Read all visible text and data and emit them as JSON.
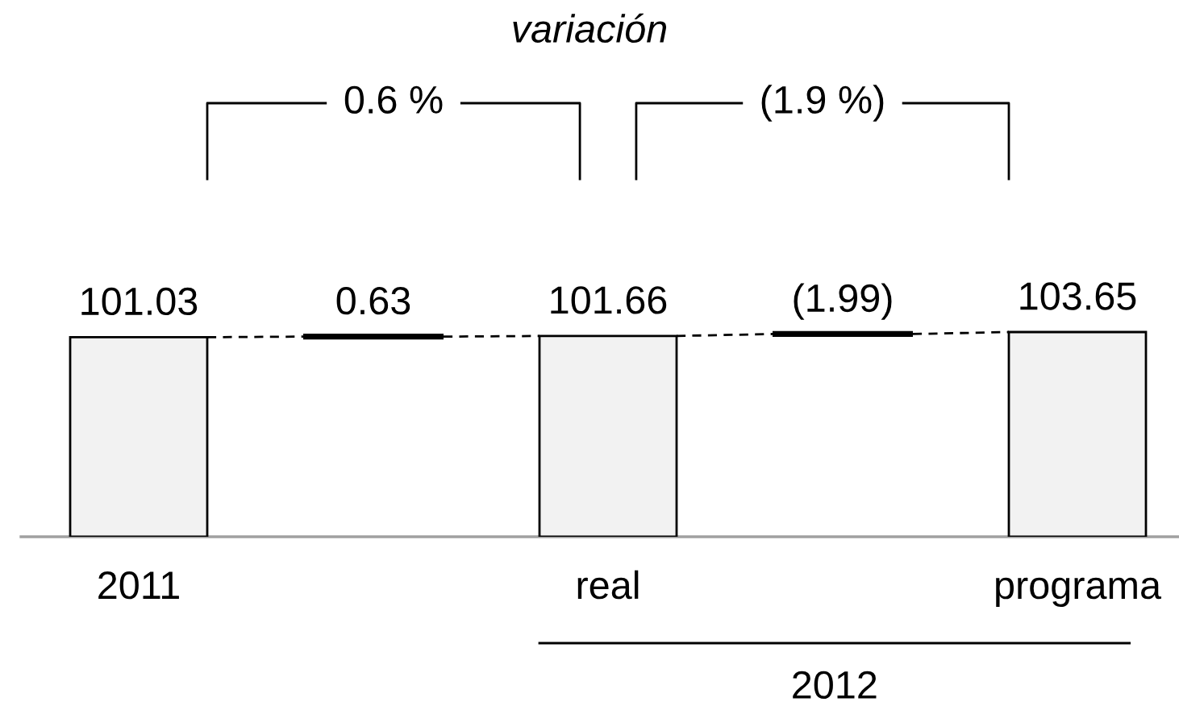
{
  "chart_data": {
    "type": "bar",
    "title": "variación",
    "categories": [
      "2011",
      null,
      "real",
      null,
      "programa"
    ],
    "values": [
      101.03,
      null,
      101.66,
      null,
      103.65
    ],
    "color": "#f2f2f2",
    "data_labels": true,
    "annotations": [
      "0.63",
      "(1.99)",
      "0.6 %",
      "(1.9 %)",
      "2012"
    ]
  }
}
